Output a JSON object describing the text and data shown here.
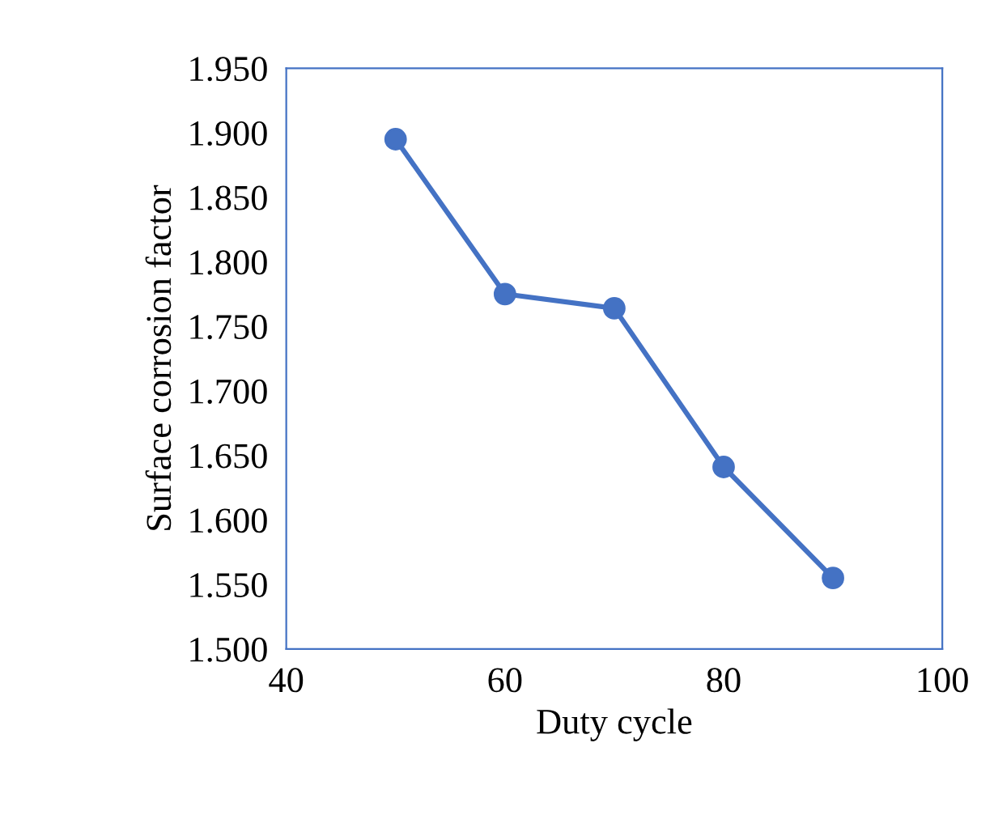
{
  "chart_data": {
    "type": "line",
    "xlabel": "Duty cycle",
    "ylabel": "Surface corrosion factor",
    "x": [
      50,
      60,
      70,
      80,
      90
    ],
    "series": [
      {
        "color": "#4472c4",
        "values": [
          1.895,
          1.775,
          1.764,
          1.641,
          1.555
        ]
      }
    ],
    "xlim": [
      40,
      100
    ],
    "xticks": [
      40,
      60,
      80,
      100
    ],
    "ylim": [
      1.5,
      1.95
    ],
    "yticks": [
      {
        "value": 1.5,
        "label": "1.500"
      },
      {
        "value": 1.55,
        "label": "1.550"
      },
      {
        "value": 1.6,
        "label": "1.600"
      },
      {
        "value": 1.65,
        "label": "1.650"
      },
      {
        "value": 1.7,
        "label": "1.700"
      },
      {
        "value": 1.75,
        "label": "1.750"
      },
      {
        "value": 1.8,
        "label": "1.800"
      },
      {
        "value": 1.85,
        "label": "1.850"
      },
      {
        "value": 1.9,
        "label": "1.900"
      },
      {
        "value": 1.95,
        "label": "1.950"
      }
    ],
    "marker": "circle",
    "line_style": "solid",
    "grid": false,
    "legend": false
  }
}
